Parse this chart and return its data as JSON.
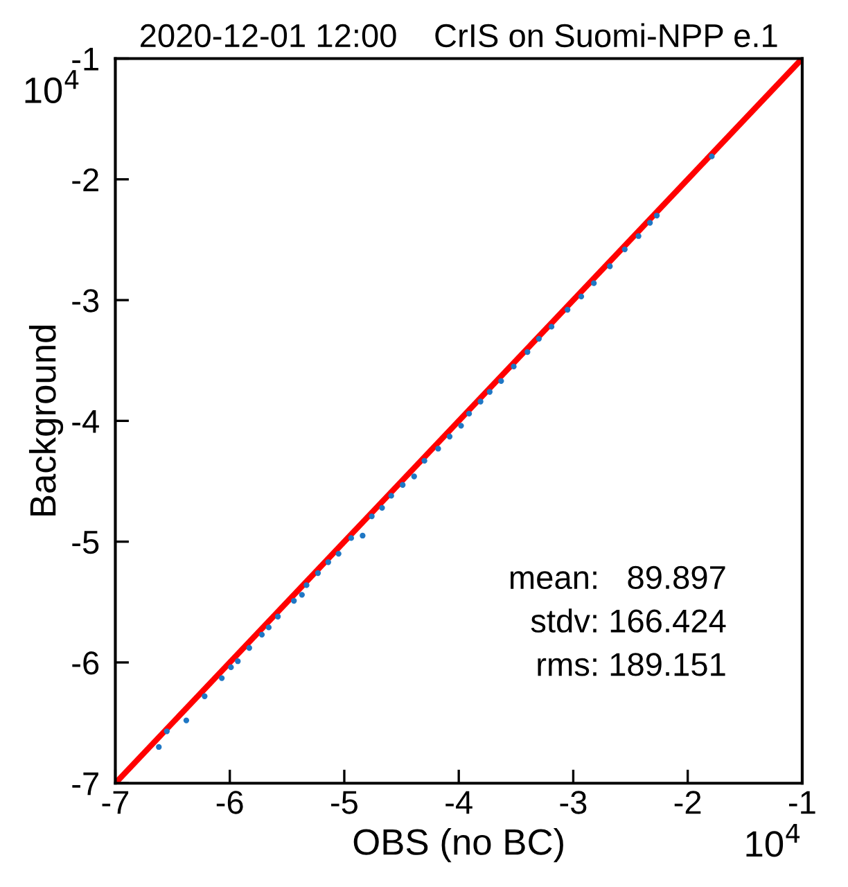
{
  "chart_data": {
    "type": "scatter",
    "title": "2020-12-01 12:00    CrIS on Suomi-NPP e.1",
    "xlabel": "OBS (no BC)",
    "ylabel": "Background",
    "xlim": [
      -7,
      -1
    ],
    "ylim": [
      -7,
      -1
    ],
    "xticks": [
      -7,
      -6,
      -5,
      -4,
      -3,
      -2,
      -1
    ],
    "yticks": [
      -7,
      -6,
      -5,
      -4,
      -3,
      -2,
      -1
    ],
    "grid": false,
    "annotations": [
      "10$^{4}$",
      "10$^{4}$",
      "mean:   89.897",
      "stdv: 166.424",
      "rms: 189.151"
    ],
    "series": [
      {
        "color": "#1f77c4",
        "x": [
          -6.62,
          -6.55,
          -6.38,
          -6.22,
          -6.07,
          -5.99,
          -5.93,
          -5.83,
          -5.72,
          -5.66,
          -5.58,
          -5.44,
          -5.37,
          -5.33,
          -5.23,
          -5.14,
          -5.05,
          -4.94,
          -4.84,
          -4.76,
          -4.67,
          -4.59,
          -4.49,
          -4.39,
          -4.3,
          -4.18,
          -4.08,
          -3.98,
          -3.91,
          -3.81,
          -3.73,
          -3.63,
          -3.52,
          -3.4,
          -3.3,
          -3.19,
          -3.05,
          -2.93,
          -2.82,
          -2.68,
          -2.55,
          -2.43,
          -2.33,
          -2.27,
          -1.79
        ],
        "values": [
          -6.7,
          -6.57,
          -6.48,
          -6.28,
          -6.13,
          -6.04,
          -5.99,
          -5.88,
          -5.77,
          -5.71,
          -5.62,
          -5.49,
          -5.44,
          -5.36,
          -5.26,
          -5.17,
          -5.1,
          -4.97,
          -4.95,
          -4.79,
          -4.72,
          -4.62,
          -4.53,
          -4.46,
          -4.33,
          -4.23,
          -4.13,
          -4.04,
          -3.94,
          -3.84,
          -3.76,
          -3.67,
          -3.55,
          -3.43,
          -3.32,
          -3.22,
          -3.08,
          -2.97,
          -2.86,
          -2.72,
          -2.58,
          -2.47,
          -2.36,
          -2.3,
          -1.81
        ]
      },
      {
        "type": "line",
        "color": "#ff0000",
        "x": [
          -7,
          -1
        ],
        "values": [
          -7,
          -1
        ]
      }
    ]
  }
}
